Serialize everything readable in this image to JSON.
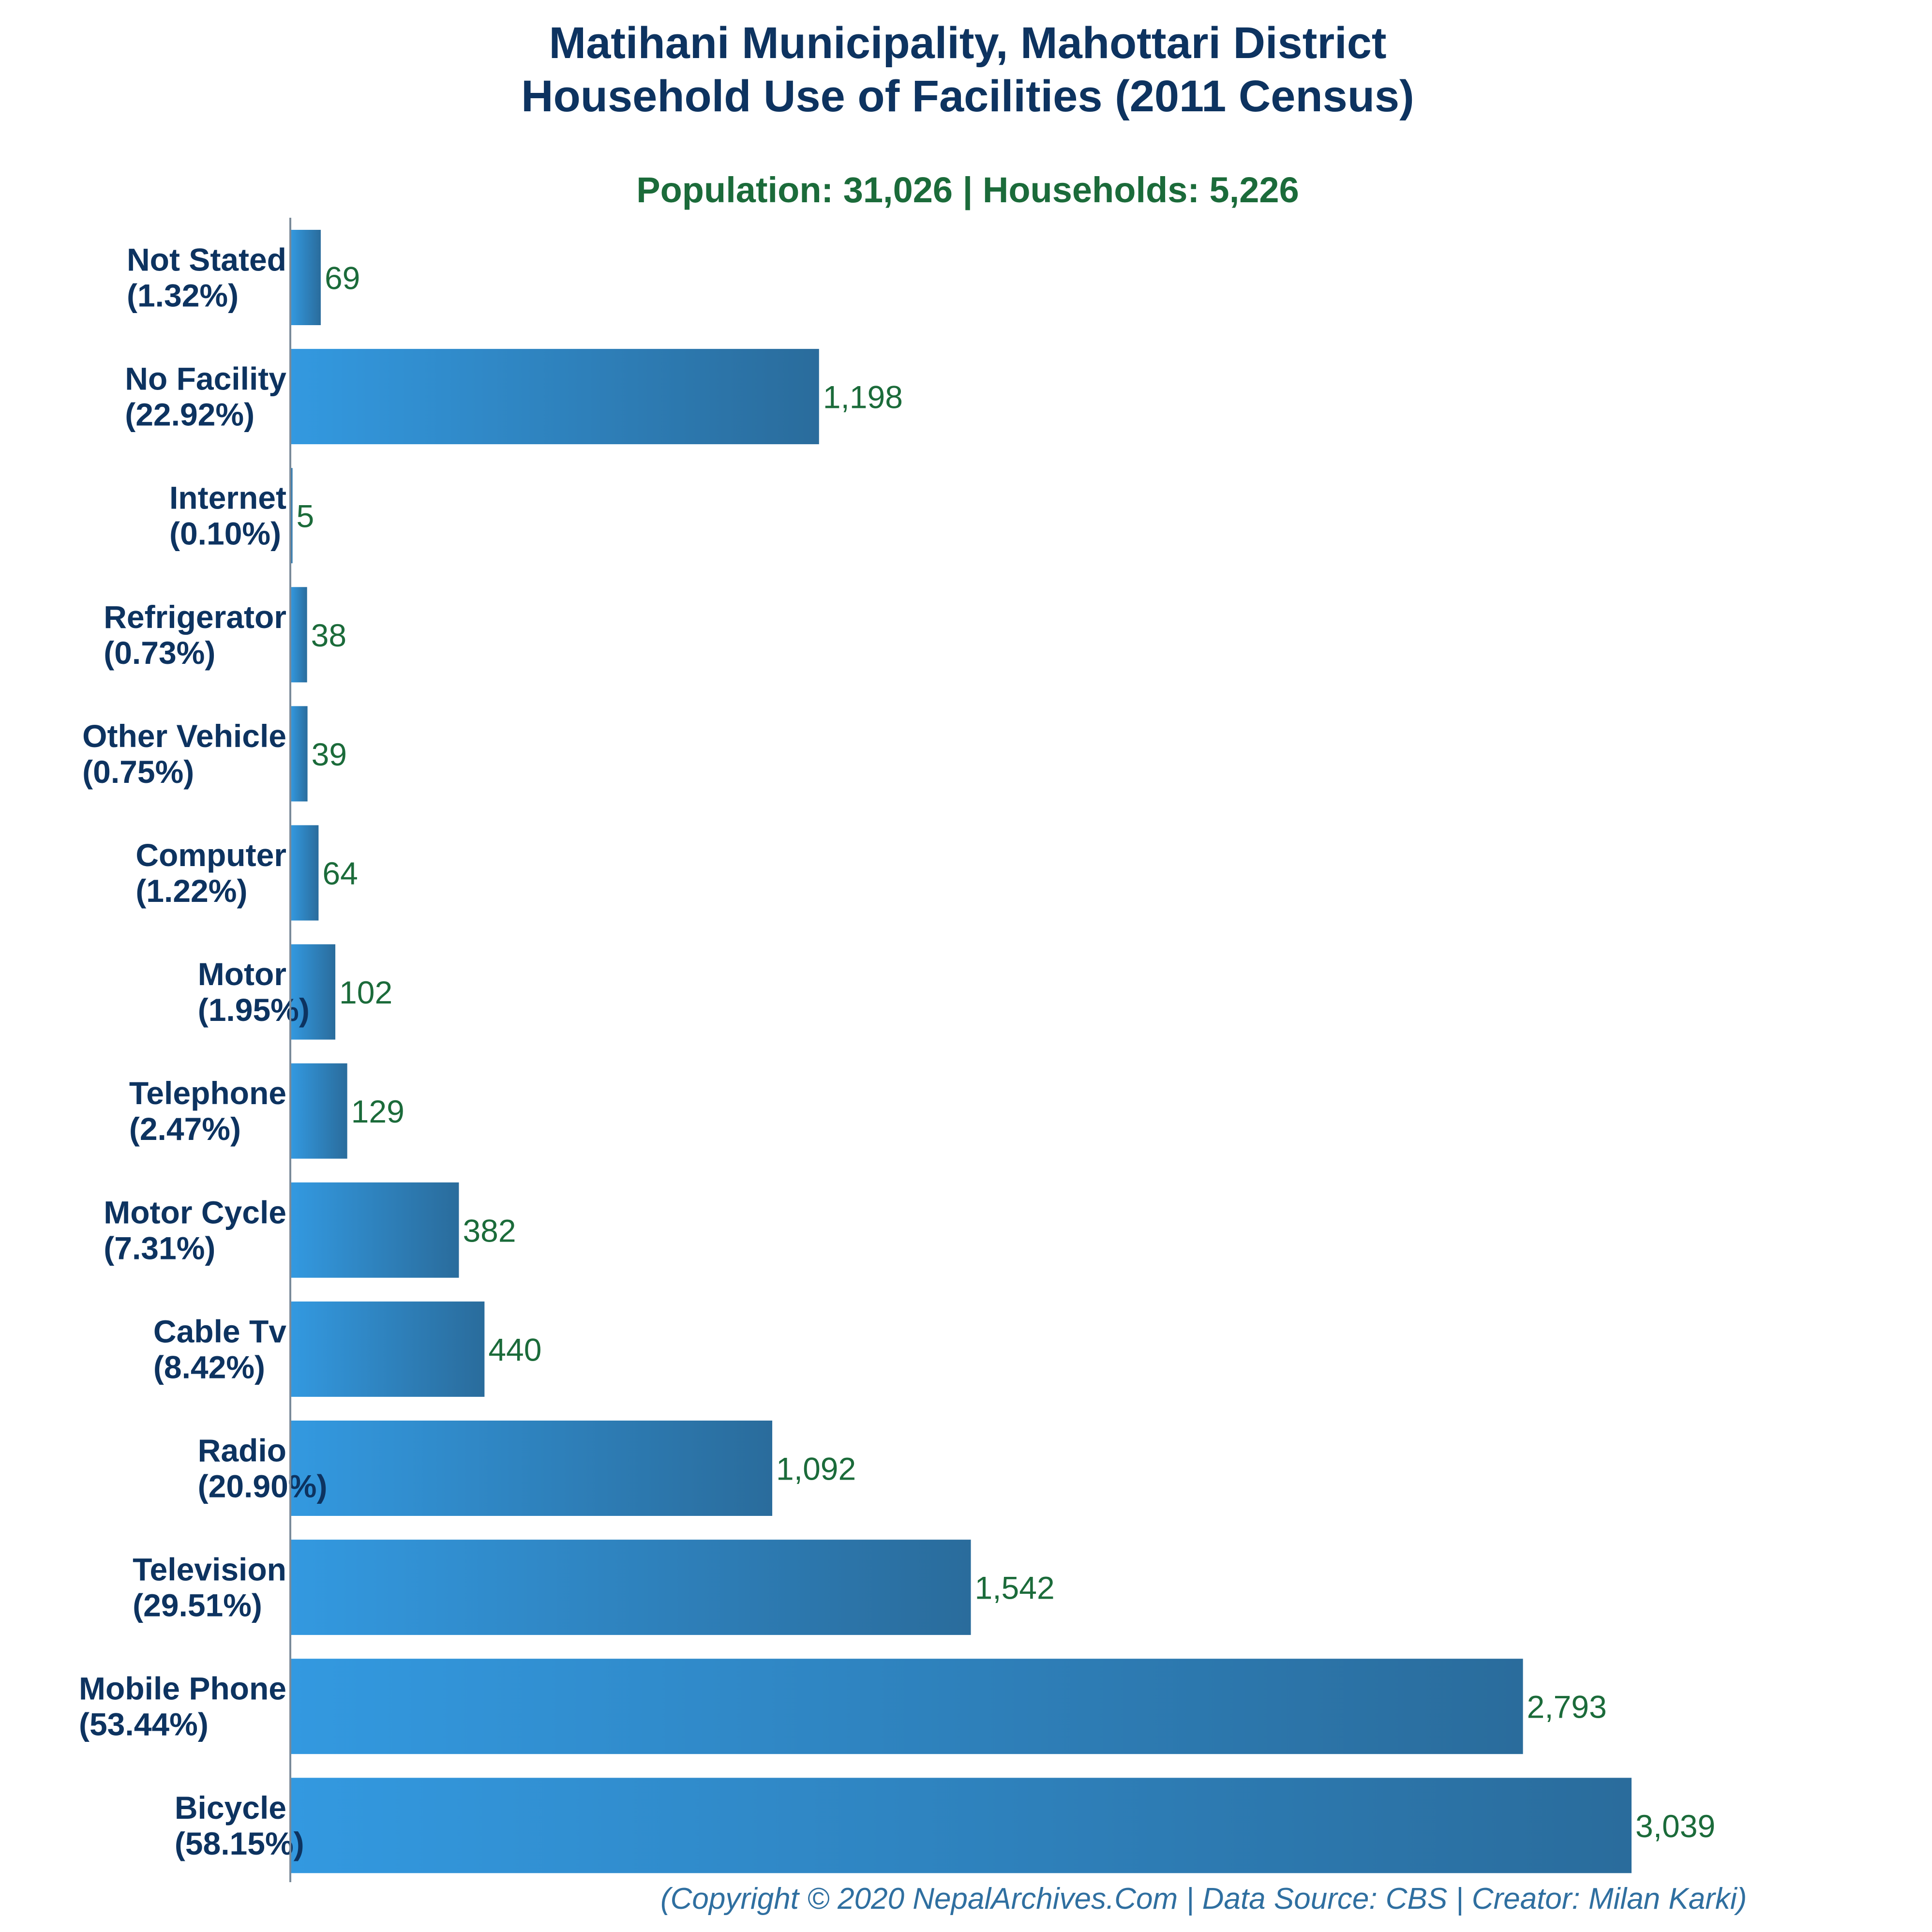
{
  "chart_data": {
    "type": "bar",
    "orientation": "horizontal",
    "title": [
      "Matihani Municipality, Mahottari District",
      "Household Use of Facilities (2011 Census)"
    ],
    "subtitle": "Population: 31,026 | Households: 5,226",
    "footer": "(Copyright © 2020 NepalArchives.Com | Data Source: CBS | Creator: Milan Karki)",
    "categories": [
      {
        "name": "Not Stated",
        "pct": "(1.32%)",
        "value": 69,
        "label": "69"
      },
      {
        "name": "No Facility",
        "pct": "(22.92%)",
        "value": 1198,
        "label": "1,198"
      },
      {
        "name": "Internet",
        "pct": "(0.10%)",
        "value": 5,
        "label": "5"
      },
      {
        "name": "Refrigerator",
        "pct": "(0.73%)",
        "value": 38,
        "label": "38"
      },
      {
        "name": "Other Vehicle",
        "pct": "(0.75%)",
        "value": 39,
        "label": "39"
      },
      {
        "name": "Computer",
        "pct": "(1.22%)",
        "value": 64,
        "label": "64"
      },
      {
        "name": "Motor",
        "pct": "(1.95%)",
        "value": 102,
        "label": "102"
      },
      {
        "name": "Telephone",
        "pct": "(2.47%)",
        "value": 129,
        "label": "129"
      },
      {
        "name": "Motor Cycle",
        "pct": "(7.31%)",
        "value": 382,
        "label": "382"
      },
      {
        "name": "Cable Tv",
        "pct": "(8.42%)",
        "value": 440,
        "label": "440"
      },
      {
        "name": "Radio",
        "pct": "(20.90%)",
        "value": 1092,
        "label": "1,092"
      },
      {
        "name": "Television",
        "pct": "(29.51%)",
        "value": 1542,
        "label": "1,542"
      },
      {
        "name": "Mobile Phone",
        "pct": "(53.44%)",
        "value": 2793,
        "label": "2,793"
      },
      {
        "name": "Bicycle",
        "pct": "(58.15%)",
        "value": 3039,
        "label": "3,039"
      }
    ],
    "xlim": [
      0,
      3039
    ],
    "grid": false,
    "legend": "none",
    "colors": {
      "bar_start": "#3399e0",
      "bar_end": "#2a6c9c",
      "title": "#0d3360",
      "subtitle": "#1b6b3a",
      "value": "#1b6b3a",
      "footer": "#2f6fa0",
      "axis": "#7a8a99"
    }
  }
}
